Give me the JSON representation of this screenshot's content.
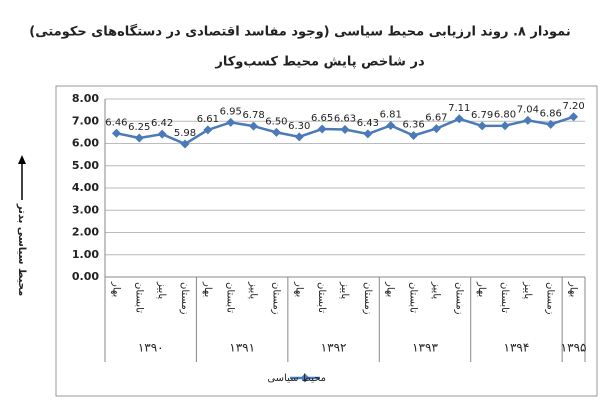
{
  "chart_data": {
    "type": "line",
    "title": "نمودار ۸. روند ارزیابی محیط سیاسی (وجود مفاسد اقتصادی در دستگاه‌های حکومتی)",
    "subtitle": "در شاخص پایش محیط کسب‌وکار",
    "y_label": "محیط سیاسی بدتر",
    "categories": [
      "بهار",
      "تابستان",
      "پاییز",
      "زمستان",
      "بهار",
      "تابستان",
      "پاییز",
      "زمستان",
      "بهار",
      "تابستان",
      "پاییز",
      "زمستان",
      "بهار",
      "تابستان",
      "پاییز",
      "زمستان",
      "بهار",
      "تابستان",
      "پاییز",
      "زمستان",
      "بهار"
    ],
    "groups": [
      "۱۳۹۰",
      "۱۳۹۱",
      "۱۳۹۲",
      "۱۳۹۳",
      "۱۳۹۴",
      "۱۳۹۵"
    ],
    "series": [
      {
        "name": "محیط سیاسی",
        "color": "#4a7ab8",
        "values": [
          6.46,
          6.25,
          6.42,
          5.98,
          6.61,
          6.95,
          6.78,
          6.5,
          6.3,
          6.65,
          6.63,
          6.43,
          6.81,
          6.36,
          6.67,
          7.11,
          6.79,
          6.8,
          7.04,
          6.86,
          7.2
        ],
        "value_labels": [
          "6.46",
          "6.25",
          "6.42",
          "5.98",
          "6.61",
          "6.95",
          "6.78",
          "6.50",
          "6.30",
          "6.65",
          "6.63",
          "6.43",
          "6.81",
          "6.36",
          "6.67",
          "7.11",
          "6.79",
          "6.80",
          "7.04",
          "6.86",
          "7.20"
        ]
      }
    ],
    "ylim": [
      0,
      8
    ],
    "yticks": [
      {
        "value": 0,
        "label": "0.00"
      },
      {
        "value": 1,
        "label": "1.00"
      },
      {
        "value": 2,
        "label": "2.00"
      },
      {
        "value": 3,
        "label": "3.00"
      },
      {
        "value": 4,
        "label": "4.00"
      },
      {
        "value": 5,
        "label": "5.00"
      },
      {
        "value": 6,
        "label": "6.00"
      },
      {
        "value": 7,
        "label": "7.00"
      },
      {
        "value": 8,
        "label": "8.00"
      }
    ],
    "grid": true,
    "legend": "bottom"
  }
}
